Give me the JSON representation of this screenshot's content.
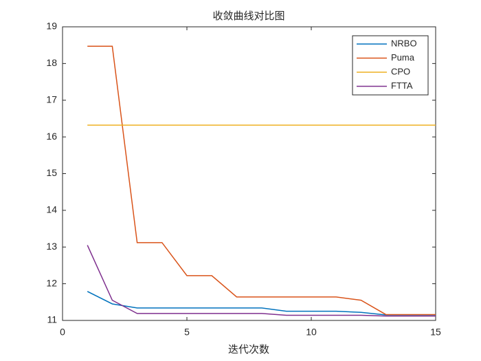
{
  "chart_data": {
    "type": "line",
    "title": "收敛曲线对比图",
    "x_label": "迭代次数",
    "x": [
      1,
      2,
      3,
      4,
      5,
      6,
      7,
      8,
      9,
      10,
      11,
      12,
      13,
      14,
      15
    ],
    "series": [
      {
        "name": "NRBO",
        "color": "#0072BD",
        "values": [
          11.79,
          11.45,
          11.34,
          11.34,
          11.34,
          11.34,
          11.34,
          11.34,
          11.25,
          11.25,
          11.25,
          11.22,
          11.15,
          11.15,
          11.15
        ]
      },
      {
        "name": "Puma",
        "color": "#D95319",
        "values": [
          18.47,
          18.47,
          13.12,
          13.12,
          12.22,
          12.22,
          11.64,
          11.64,
          11.64,
          11.64,
          11.64,
          11.55,
          11.16,
          11.16,
          11.16
        ]
      },
      {
        "name": "CPO",
        "color": "#EDB120",
        "values": [
          16.32,
          16.32,
          16.32,
          16.32,
          16.32,
          16.32,
          16.32,
          16.32,
          16.32,
          16.32,
          16.32,
          16.32,
          16.32,
          16.32,
          16.32
        ]
      },
      {
        "name": "FTTA",
        "color": "#7E2F8E",
        "values": [
          13.05,
          11.55,
          11.19,
          11.19,
          11.19,
          11.19,
          11.19,
          11.19,
          11.14,
          11.14,
          11.14,
          11.14,
          11.12,
          11.12,
          11.12
        ]
      }
    ],
    "xlim": [
      0,
      15
    ],
    "xticks": [
      0,
      5,
      10,
      15
    ],
    "ylim": [
      11,
      19
    ],
    "yticks": [
      11,
      12,
      13,
      14,
      15,
      16,
      17,
      18,
      19
    ],
    "grid": false,
    "legend": "northeast"
  }
}
